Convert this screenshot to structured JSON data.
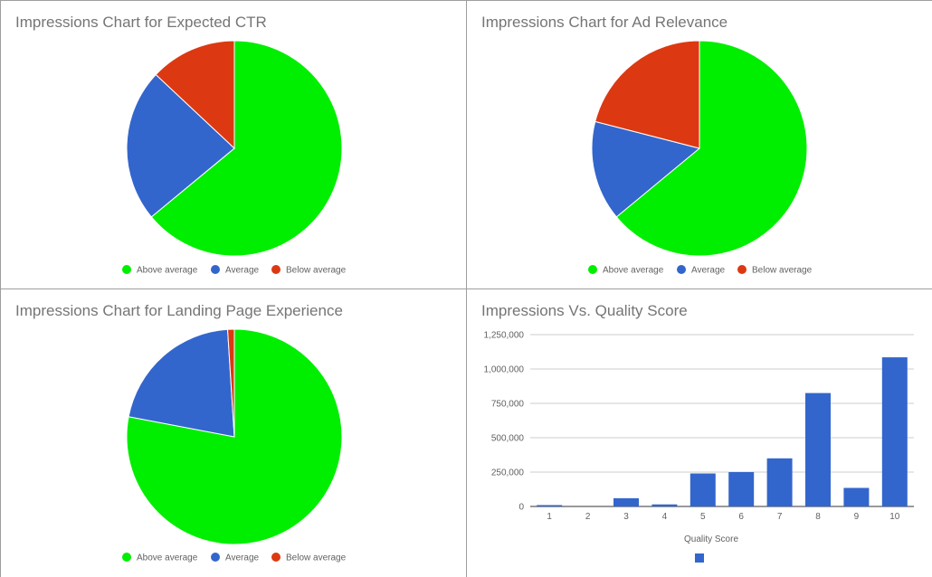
{
  "colors": {
    "above": "#00ee00",
    "average": "#3366cc",
    "below": "#dc3912",
    "bar": "#3366cc",
    "grid": "#cccccc",
    "axis": "#333333"
  },
  "chart_data": [
    {
      "type": "pie",
      "title": "Impressions Chart for Expected CTR",
      "labels": [
        "Above average",
        "Average",
        "Below average"
      ],
      "values": [
        64,
        23,
        13
      ],
      "legend": "bottom"
    },
    {
      "type": "pie",
      "title": "Impressions Chart for Ad Relevance",
      "labels": [
        "Above average",
        "Average",
        "Below average"
      ],
      "values": [
        64,
        15,
        21
      ],
      "legend": "bottom"
    },
    {
      "type": "pie",
      "title": "Impressions Chart for Landing Page Experience",
      "labels": [
        "Above average",
        "Average",
        "Below average"
      ],
      "values": [
        78,
        21,
        1
      ],
      "legend": "bottom"
    },
    {
      "type": "bar",
      "title": "Impressions Vs. Quality Score",
      "categories": [
        "1",
        "2",
        "3",
        "4",
        "5",
        "6",
        "7",
        "8",
        "9",
        "10"
      ],
      "values": [
        10000,
        0,
        60000,
        15000,
        240000,
        250000,
        350000,
        825000,
        135000,
        1085000
      ],
      "xlabel": "Quality Score",
      "ylabel": "",
      "ylim": [
        0,
        1250000
      ],
      "yticks": [
        "0",
        "250,000",
        "500,000",
        "750,000",
        "1,000,000",
        "1,250,000"
      ],
      "ytick_values": [
        0,
        250000,
        500000,
        750000,
        1000000,
        1250000
      ],
      "grid": true,
      "legend": "bottom"
    }
  ]
}
